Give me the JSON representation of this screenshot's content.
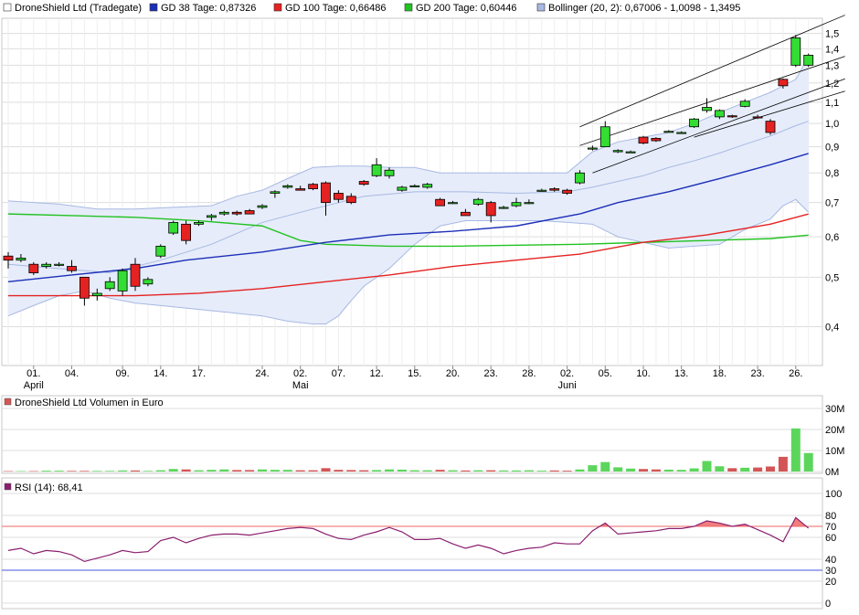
{
  "colors": {
    "gd38": "#1c2fb8",
    "gd100": "#e52222",
    "gd200": "#22c222",
    "bollinger_fill": "#e6ecfa",
    "bollinger_line": "#a7b9e2",
    "candle_up": "#33dd33",
    "candle_down": "#e52222",
    "volume_up": "#5bd65b",
    "volume_down": "#d45555",
    "rsi_line": "#8a1f6e",
    "rsi_overbought": "#ee6666",
    "rsi_oversold": "#4455dd",
    "grid": "#dddddd"
  },
  "price_panel": {
    "legend": [
      {
        "label": "DroneShield Ltd (Tradegate)",
        "swatch": "candle_up",
        "icon": "square-outline"
      },
      {
        "label": "GD 38 Tage: 0,87326",
        "swatch": "gd38"
      },
      {
        "label": "GD 100 Tage: 0,66486",
        "swatch": "gd100"
      },
      {
        "label": "GD 200 Tage: 0,60446",
        "swatch": "gd200"
      },
      {
        "label": "Bollinger (20, 2): 0,67006 - 1,0098 - 1,3495",
        "swatch": "bollinger_line"
      }
    ],
    "y_ticks": [
      "1,5",
      "1,4",
      "1,3",
      "1,2",
      "1,1",
      "1,0",
      "0,9",
      "0,8",
      "0,7",
      "0,6",
      "0,5",
      "0,4"
    ],
    "x_ticks": [
      {
        "day": "01.",
        "month": "April"
      },
      {
        "day": "04.",
        "month": ""
      },
      {
        "day": "09.",
        "month": ""
      },
      {
        "day": "14.",
        "month": ""
      },
      {
        "day": "17.",
        "month": ""
      },
      {
        "day": "24.",
        "month": ""
      },
      {
        "day": "02.",
        "month": "Mai"
      },
      {
        "day": "07.",
        "month": ""
      },
      {
        "day": "12.",
        "month": ""
      },
      {
        "day": "15.",
        "month": ""
      },
      {
        "day": "20.",
        "month": ""
      },
      {
        "day": "23.",
        "month": ""
      },
      {
        "day": "28.",
        "month": ""
      },
      {
        "day": "02.",
        "month": "Juni"
      },
      {
        "day": "05.",
        "month": ""
      },
      {
        "day": "10.",
        "month": ""
      },
      {
        "day": "13.",
        "month": ""
      },
      {
        "day": "18.",
        "month": ""
      },
      {
        "day": "23.",
        "month": ""
      },
      {
        "day": "26.",
        "month": ""
      }
    ]
  },
  "volume_panel": {
    "title": "DroneShield Ltd Volumen in Euro",
    "y_ticks": [
      "30M",
      "20M",
      "10M",
      "0M"
    ]
  },
  "rsi_panel": {
    "title": "RSI (14): 68,41",
    "y_ticks": [
      "100",
      "80",
      "70",
      "60",
      "40",
      "30",
      "20",
      "0"
    ]
  },
  "chart_data": {
    "type": "candlestick",
    "y_scale": "log",
    "ylim": [
      0.34,
      1.58
    ],
    "candles": [
      {
        "o": 0.55,
        "h": 0.56,
        "l": 0.52,
        "c": 0.54
      },
      {
        "o": 0.54,
        "h": 0.555,
        "l": 0.535,
        "c": 0.545
      },
      {
        "o": 0.53,
        "h": 0.535,
        "l": 0.505,
        "c": 0.51
      },
      {
        "o": 0.525,
        "h": 0.535,
        "l": 0.52,
        "c": 0.53
      },
      {
        "o": 0.53,
        "h": 0.535,
        "l": 0.525,
        "c": 0.53
      },
      {
        "o": 0.525,
        "h": 0.54,
        "l": 0.51,
        "c": 0.515
      },
      {
        "o": 0.5,
        "h": 0.5,
        "l": 0.44,
        "c": 0.455
      },
      {
        "o": 0.46,
        "h": 0.475,
        "l": 0.45,
        "c": 0.465
      },
      {
        "o": 0.475,
        "h": 0.5,
        "l": 0.47,
        "c": 0.49
      },
      {
        "o": 0.47,
        "h": 0.52,
        "l": 0.46,
        "c": 0.515
      },
      {
        "o": 0.53,
        "h": 0.545,
        "l": 0.47,
        "c": 0.48
      },
      {
        "o": 0.485,
        "h": 0.5,
        "l": 0.48,
        "c": 0.495
      },
      {
        "o": 0.55,
        "h": 0.58,
        "l": 0.545,
        "c": 0.575
      },
      {
        "o": 0.61,
        "h": 0.645,
        "l": 0.605,
        "c": 0.64
      },
      {
        "o": 0.635,
        "h": 0.645,
        "l": 0.58,
        "c": 0.59
      },
      {
        "o": 0.635,
        "h": 0.645,
        "l": 0.63,
        "c": 0.64
      },
      {
        "o": 0.655,
        "h": 0.665,
        "l": 0.645,
        "c": 0.66
      },
      {
        "o": 0.665,
        "h": 0.675,
        "l": 0.66,
        "c": 0.67
      },
      {
        "o": 0.67,
        "h": 0.675,
        "l": 0.66,
        "c": 0.665
      },
      {
        "o": 0.675,
        "h": 0.68,
        "l": 0.665,
        "c": 0.665
      },
      {
        "o": 0.685,
        "h": 0.695,
        "l": 0.68,
        "c": 0.69
      },
      {
        "o": 0.73,
        "h": 0.74,
        "l": 0.715,
        "c": 0.735
      },
      {
        "o": 0.75,
        "h": 0.76,
        "l": 0.745,
        "c": 0.755
      },
      {
        "o": 0.745,
        "h": 0.755,
        "l": 0.74,
        "c": 0.74
      },
      {
        "o": 0.76,
        "h": 0.765,
        "l": 0.74,
        "c": 0.745
      },
      {
        "o": 0.765,
        "h": 0.77,
        "l": 0.66,
        "c": 0.7
      },
      {
        "o": 0.73,
        "h": 0.74,
        "l": 0.7,
        "c": 0.71
      },
      {
        "o": 0.72,
        "h": 0.73,
        "l": 0.695,
        "c": 0.7
      },
      {
        "o": 0.77,
        "h": 0.775,
        "l": 0.755,
        "c": 0.76
      },
      {
        "o": 0.79,
        "h": 0.855,
        "l": 0.785,
        "c": 0.83
      },
      {
        "o": 0.79,
        "h": 0.82,
        "l": 0.78,
        "c": 0.81
      },
      {
        "o": 0.74,
        "h": 0.755,
        "l": 0.735,
        "c": 0.75
      },
      {
        "o": 0.755,
        "h": 0.76,
        "l": 0.75,
        "c": 0.755
      },
      {
        "o": 0.75,
        "h": 0.765,
        "l": 0.745,
        "c": 0.76
      },
      {
        "o": 0.71,
        "h": 0.715,
        "l": 0.69,
        "c": 0.69
      },
      {
        "o": 0.7,
        "h": 0.705,
        "l": 0.695,
        "c": 0.7
      },
      {
        "o": 0.67,
        "h": 0.68,
        "l": 0.66,
        "c": 0.66
      },
      {
        "o": 0.695,
        "h": 0.715,
        "l": 0.69,
        "c": 0.71
      },
      {
        "o": 0.7,
        "h": 0.705,
        "l": 0.64,
        "c": 0.66
      },
      {
        "o": 0.685,
        "h": 0.69,
        "l": 0.68,
        "c": 0.685
      },
      {
        "o": 0.69,
        "h": 0.715,
        "l": 0.685,
        "c": 0.7
      },
      {
        "o": 0.7,
        "h": 0.71,
        "l": 0.695,
        "c": 0.7
      },
      {
        "o": 0.74,
        "h": 0.745,
        "l": 0.735,
        "c": 0.74
      },
      {
        "o": 0.745,
        "h": 0.75,
        "l": 0.735,
        "c": 0.74
      },
      {
        "o": 0.74,
        "h": 0.745,
        "l": 0.725,
        "c": 0.73
      },
      {
        "o": 0.765,
        "h": 0.81,
        "l": 0.76,
        "c": 0.8
      },
      {
        "o": 0.895,
        "h": 0.905,
        "l": 0.885,
        "c": 0.895
      },
      {
        "o": 0.9,
        "h": 1.01,
        "l": 0.9,
        "c": 0.985
      },
      {
        "o": 0.88,
        "h": 0.89,
        "l": 0.875,
        "c": 0.885
      },
      {
        "o": 0.88,
        "h": 0.885,
        "l": 0.875,
        "c": 0.88
      },
      {
        "o": 0.94,
        "h": 0.945,
        "l": 0.91,
        "c": 0.915
      },
      {
        "o": 0.935,
        "h": 0.94,
        "l": 0.92,
        "c": 0.925
      },
      {
        "o": 0.965,
        "h": 0.97,
        "l": 0.96,
        "c": 0.965
      },
      {
        "o": 0.96,
        "h": 0.965,
        "l": 0.955,
        "c": 0.96
      },
      {
        "o": 0.985,
        "h": 1.025,
        "l": 0.98,
        "c": 1.02
      },
      {
        "o": 1.06,
        "h": 1.12,
        "l": 1.05,
        "c": 1.075
      },
      {
        "o": 1.03,
        "h": 1.065,
        "l": 1.02,
        "c": 1.06
      },
      {
        "o": 1.035,
        "h": 1.04,
        "l": 1.025,
        "c": 1.03
      },
      {
        "o": 1.08,
        "h": 1.115,
        "l": 1.075,
        "c": 1.105
      },
      {
        "o": 1.03,
        "h": 1.04,
        "l": 1.02,
        "c": 1.025
      },
      {
        "o": 1.01,
        "h": 1.02,
        "l": 0.95,
        "c": 0.96
      },
      {
        "o": 1.22,
        "h": 1.225,
        "l": 1.17,
        "c": 1.185
      },
      {
        "o": 1.3,
        "h": 1.49,
        "l": 1.29,
        "c": 1.47
      },
      {
        "o": 1.3,
        "h": 1.37,
        "l": 1.29,
        "c": 1.36
      }
    ],
    "gd38": [
      [
        0,
        0.49
      ],
      [
        5,
        0.505
      ],
      [
        10,
        0.52
      ],
      [
        14,
        0.54
      ],
      [
        20,
        0.56
      ],
      [
        25,
        0.585
      ],
      [
        30,
        0.605
      ],
      [
        35,
        0.615
      ],
      [
        40,
        0.63
      ],
      [
        45,
        0.665
      ],
      [
        48,
        0.7
      ],
      [
        52,
        0.735
      ],
      [
        56,
        0.78
      ],
      [
        60,
        0.83
      ],
      [
        63,
        0.87326
      ]
    ],
    "gd100": [
      [
        0,
        0.46
      ],
      [
        10,
        0.46
      ],
      [
        15,
        0.465
      ],
      [
        20,
        0.475
      ],
      [
        25,
        0.49
      ],
      [
        30,
        0.505
      ],
      [
        35,
        0.525
      ],
      [
        40,
        0.54
      ],
      [
        45,
        0.555
      ],
      [
        50,
        0.585
      ],
      [
        55,
        0.605
      ],
      [
        60,
        0.635
      ],
      [
        63,
        0.66486
      ]
    ],
    "gd200": [
      [
        0,
        0.665
      ],
      [
        5,
        0.66
      ],
      [
        10,
        0.655
      ],
      [
        15,
        0.645
      ],
      [
        20,
        0.63
      ],
      [
        23,
        0.59
      ],
      [
        25,
        0.58
      ],
      [
        30,
        0.575
      ],
      [
        35,
        0.575
      ],
      [
        45,
        0.58
      ],
      [
        50,
        0.585
      ],
      [
        55,
        0.59
      ],
      [
        60,
        0.595
      ],
      [
        63,
        0.60446
      ]
    ],
    "bollinger_upper": [
      [
        0,
        0.705
      ],
      [
        4,
        0.695
      ],
      [
        7,
        0.68
      ],
      [
        10,
        0.68
      ],
      [
        13,
        0.685
      ],
      [
        16,
        0.69
      ],
      [
        18,
        0.72
      ],
      [
        20,
        0.74
      ],
      [
        22,
        0.78
      ],
      [
        24,
        0.82
      ],
      [
        26,
        0.825
      ],
      [
        28,
        0.825
      ],
      [
        30,
        0.82
      ],
      [
        32,
        0.82
      ],
      [
        34,
        0.8
      ],
      [
        36,
        0.8
      ],
      [
        38,
        0.8
      ],
      [
        40,
        0.8
      ],
      [
        42,
        0.8
      ],
      [
        44,
        0.8
      ],
      [
        46,
        0.88
      ],
      [
        48,
        0.92
      ],
      [
        50,
        0.94
      ],
      [
        52,
        0.96
      ],
      [
        54,
        1.0
      ],
      [
        56,
        1.05
      ],
      [
        58,
        1.1
      ],
      [
        60,
        1.15
      ],
      [
        62,
        1.22
      ],
      [
        63,
        1.3495
      ]
    ],
    "bollinger_middle": [
      [
        0,
        0.53
      ],
      [
        4,
        0.52
      ],
      [
        8,
        0.51
      ],
      [
        12,
        0.54
      ],
      [
        16,
        0.58
      ],
      [
        20,
        0.64
      ],
      [
        24,
        0.68
      ],
      [
        28,
        0.72
      ],
      [
        32,
        0.735
      ],
      [
        36,
        0.735
      ],
      [
        40,
        0.73
      ],
      [
        44,
        0.735
      ],
      [
        46,
        0.75
      ],
      [
        48,
        0.77
      ],
      [
        50,
        0.79
      ],
      [
        52,
        0.82
      ],
      [
        54,
        0.845
      ],
      [
        56,
        0.875
      ],
      [
        58,
        0.91
      ],
      [
        60,
        0.945
      ],
      [
        62,
        0.99
      ],
      [
        63,
        1.0098
      ]
    ],
    "bollinger_lower": [
      [
        0,
        0.42
      ],
      [
        2,
        0.44
      ],
      [
        4,
        0.46
      ],
      [
        6,
        0.47
      ],
      [
        8,
        0.455
      ],
      [
        10,
        0.445
      ],
      [
        12,
        0.44
      ],
      [
        14,
        0.435
      ],
      [
        16,
        0.43
      ],
      [
        18,
        0.425
      ],
      [
        20,
        0.42
      ],
      [
        22,
        0.41
      ],
      [
        24,
        0.405
      ],
      [
        25,
        0.405
      ],
      [
        26,
        0.42
      ],
      [
        27,
        0.45
      ],
      [
        28,
        0.48
      ],
      [
        30,
        0.52
      ],
      [
        32,
        0.58
      ],
      [
        34,
        0.63
      ],
      [
        36,
        0.645
      ],
      [
        38,
        0.645
      ],
      [
        40,
        0.645
      ],
      [
        42,
        0.645
      ],
      [
        44,
        0.64
      ],
      [
        46,
        0.635
      ],
      [
        48,
        0.6
      ],
      [
        50,
        0.585
      ],
      [
        52,
        0.57
      ],
      [
        54,
        0.575
      ],
      [
        56,
        0.58
      ],
      [
        58,
        0.62
      ],
      [
        60,
        0.65
      ],
      [
        61,
        0.69
      ],
      [
        62,
        0.71
      ],
      [
        63,
        0.67006
      ]
    ],
    "trend_lines": [
      {
        "from": [
          45,
          0.905
        ],
        "to": [
          63,
          1.28
        ]
      },
      {
        "from": [
          45,
          0.985
        ],
        "to": [
          63,
          1.52
        ]
      },
      {
        "from": [
          46,
          0.8
        ],
        "to": [
          63,
          1.15
        ]
      },
      {
        "from": [
          54,
          0.94
        ],
        "to": [
          63,
          1.1
        ]
      }
    ],
    "volume": [
      0.2,
      0.2,
      0.2,
      0.4,
      0.4,
      0.3,
      0.3,
      0.3,
      0.3,
      0.5,
      0.5,
      0.3,
      0.6,
      1.2,
      1.0,
      0.6,
      0.8,
      1.0,
      0.7,
      0.7,
      1.0,
      0.8,
      0.8,
      0.6,
      0.6,
      1.6,
      0.8,
      0.7,
      0.6,
      0.7,
      1.0,
      0.9,
      0.6,
      0.6,
      0.8,
      0.6,
      0.5,
      0.6,
      0.6,
      0.5,
      0.5,
      0.6,
      0.4,
      0.5,
      0.4,
      1.0,
      3.0,
      4.5,
      2.0,
      1.4,
      1.2,
      1.0,
      0.9,
      0.8,
      1.5,
      5.0,
      2.5,
      1.6,
      1.8,
      1.9,
      2.4,
      7.0,
      20.5,
      8.8
    ],
    "volume_ylim": [
      0,
      30
    ],
    "rsi": [
      48,
      50,
      45,
      48,
      47,
      44,
      38,
      41,
      44,
      48,
      46,
      47,
      57,
      60,
      55,
      59,
      62,
      63,
      63,
      62,
      64,
      66,
      68,
      69,
      68,
      63,
      59,
      58,
      62,
      65,
      69,
      65,
      58,
      58,
      59,
      54,
      50,
      53,
      50,
      45,
      48,
      50,
      51,
      55,
      54,
      54,
      66,
      73,
      63,
      64,
      65,
      66,
      68,
      68,
      70,
      75,
      73,
      70,
      72,
      67,
      62,
      56,
      78,
      68.41
    ],
    "rsi_ylim": [
      0,
      100
    ],
    "rsi_levels": [
      70,
      30
    ]
  }
}
